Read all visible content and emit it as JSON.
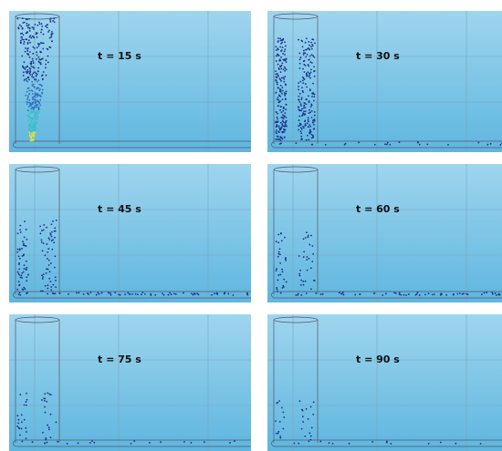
{
  "panels": [
    {
      "label": "t = 15 s"
    },
    {
      "label": "t = 30 s"
    },
    {
      "label": "t = 45 s"
    },
    {
      "label": "t = 60 s"
    },
    {
      "label": "t = 75 s"
    },
    {
      "label": "t = 90 s"
    }
  ]
}
